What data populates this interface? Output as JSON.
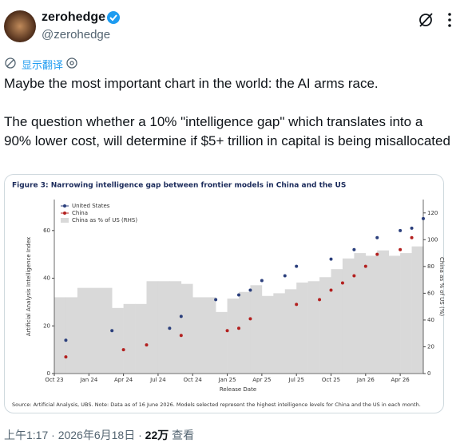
{
  "tweet": {
    "name": "zerohedge",
    "handle": "@zerohedge",
    "translate": "显示翻译",
    "paragraphs": [
      "Maybe the most important chart in the world: the AI arms race.",
      "The question whether a 10% \"intelligence gap\" which translates into a 90% lower cost, will determine if $5+ trillion in capital is being misallocated"
    ],
    "time": "上午1:17",
    "separator": "·",
    "date": "2026年6月18日",
    "views": "22万",
    "views_label": "查看"
  },
  "chart_data": {
    "type": "step",
    "title": "Figure 3: Narrowing intelligence gap between frontier models in China and the US",
    "xlabel": "Release Date",
    "ylabel": "Artificial Analysis Intelligence Index",
    "y2label": "China as % of US (%)",
    "source": "Source: Artificial Analysis, UBS. Note: Data as of 16 June 2026. Models selected represent the highest intelligence levels for China and the US in each month.",
    "xlim": [
      "2023-10",
      "2026-06"
    ],
    "xticks": [
      {
        "value": "2023-10",
        "label": "Oct 23"
      },
      {
        "value": "2024-01",
        "label": "Jan 24"
      },
      {
        "value": "2024-04",
        "label": "Apr 24"
      },
      {
        "value": "2024-07",
        "label": "Jul 24"
      },
      {
        "value": "2024-10",
        "label": "Oct 24"
      },
      {
        "value": "2025-01",
        "label": "Jan 25"
      },
      {
        "value": "2025-04",
        "label": "Apr 25"
      },
      {
        "value": "2025-07",
        "label": "Jul 25"
      },
      {
        "value": "2025-10",
        "label": "Oct 25"
      },
      {
        "value": "2026-01",
        "label": "Jan 26"
      },
      {
        "value": "2026-04",
        "label": "Apr 26"
      }
    ],
    "ylim": [
      0,
      73
    ],
    "yticks": [
      0,
      20,
      40,
      60
    ],
    "y2lim": [
      0,
      130
    ],
    "y2ticks": [
      0,
      20,
      40,
      60,
      80,
      100,
      120
    ],
    "grid": false,
    "legend": "upper left",
    "series": [
      {
        "name": "United States",
        "color": "#2b3f7c",
        "x": [
          "2023-11",
          "2024-03",
          "2024-08",
          "2024-09",
          "2024-12",
          "2025-02",
          "2025-03",
          "2025-04",
          "2025-06",
          "2025-07",
          "2025-10",
          "2025-12",
          "2026-02",
          "2026-04",
          "2026-05",
          "2026-06"
        ],
        "values": [
          14,
          18,
          19,
          24,
          31,
          33,
          35,
          39,
          41,
          45,
          48,
          52,
          57,
          60,
          61,
          65
        ]
      },
      {
        "name": "China",
        "color": "#b3201f",
        "x": [
          "2023-11",
          "2024-04",
          "2024-06",
          "2024-09",
          "2025-01",
          "2025-02",
          "2025-03",
          "2025-07",
          "2025-09",
          "2025-10",
          "2025-11",
          "2025-12",
          "2026-01",
          "2026-02",
          "2026-04",
          "2026-05"
        ],
        "values": [
          7,
          10,
          12,
          16,
          18,
          19,
          23,
          29,
          31,
          35,
          38,
          41,
          45,
          50,
          52,
          57
        ]
      },
      {
        "name": "China as % of US (RHS)",
        "color": "#d9d9d9",
        "axis": "y2",
        "x": [
          "2023-10",
          "2023-11",
          "2023-12",
          "2024-01",
          "2024-02",
          "2024-03",
          "2024-04",
          "2024-05",
          "2024-06",
          "2024-07",
          "2024-08",
          "2024-09",
          "2024-10",
          "2024-11",
          "2024-12",
          "2025-01",
          "2025-02",
          "2025-03",
          "2025-04",
          "2025-05",
          "2025-06",
          "2025-07",
          "2025-08",
          "2025-09",
          "2025-10",
          "2025-11",
          "2025-12",
          "2026-01",
          "2026-02",
          "2026-03",
          "2026-04",
          "2026-05",
          "2026-06"
        ],
        "values": [
          57,
          57,
          64,
          64,
          64,
          49,
          52,
          52,
          69,
          69,
          69,
          67,
          57,
          57,
          46,
          56,
          61,
          66,
          58,
          60,
          63,
          68,
          69,
          72,
          78,
          86,
          90,
          88,
          92,
          88,
          90,
          95,
          93
        ]
      }
    ]
  }
}
